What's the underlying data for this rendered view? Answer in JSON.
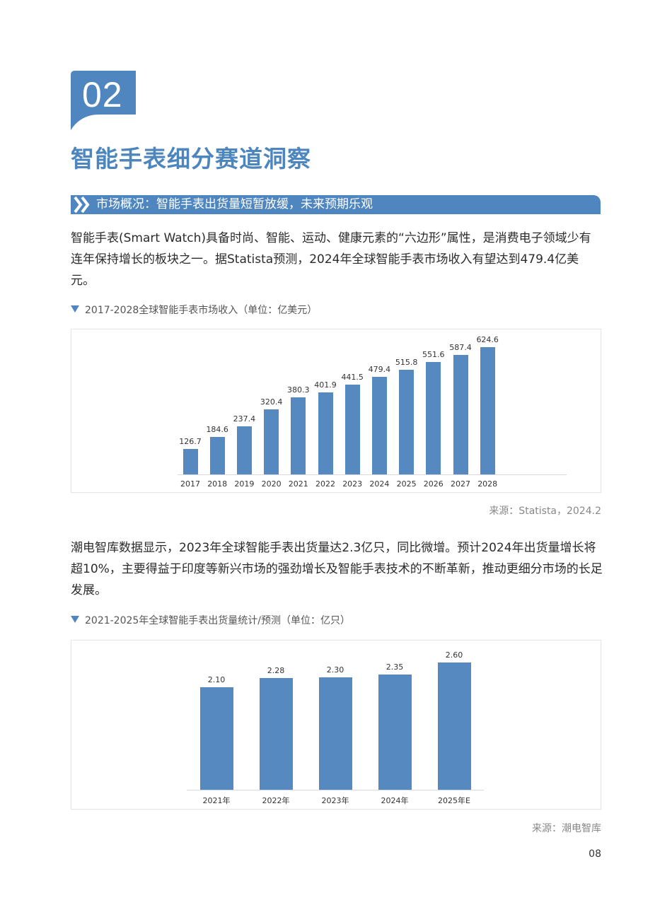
{
  "section_number": "02",
  "page_title": "智能手表细分赛道洞察",
  "section_header": "市场概况：智能手表出货量短暂放缓，未来预期乐观",
  "paragraphs": [
    "智能手表(Smart Watch)具备时尚、智能、运动、健康元素的“六边形”属性，是消费电子领域少有连年保持增长的板块之一。据Statista预测，2024年全球智能手表市场收入有望达到479.4亿美元。",
    "潮电智库数据显示，2023年全球智能手表出货量达2.3亿只，同比微增。预计2024年出货量增长将超10%，主要得益于印度等新兴市场的强劲增长及智能手表技术的不断革新，推动更细分市场的长足发展。"
  ],
  "charts": [
    {
      "caption": "2017-2028全球智能手表市场收入（单位：亿美元）",
      "source": "来源：Statista，2024.2"
    },
    {
      "caption": "2021-2025年全球智能手表出货量统计/预测（单位：亿只）",
      "source": "来源：潮电智库"
    }
  ],
  "page_number": "08",
  "colors": {
    "accent": "#4f86bf",
    "bar": "#5589bf",
    "title": "#4d86bd"
  },
  "icons": {
    "section_bar": "double-chevron-right-icon",
    "caption": "triangle-down-icon"
  },
  "chart_data": [
    {
      "type": "bar",
      "title": "2017-2028全球智能手表市场收入（单位：亿美元）",
      "xlabel": "",
      "ylabel": "亿美元",
      "categories": [
        "2017",
        "2018",
        "2019",
        "2020",
        "2021",
        "2022",
        "2023",
        "2024",
        "2025",
        "2026",
        "2027",
        "2028"
      ],
      "values": [
        126.7,
        184.6,
        237.4,
        320.4,
        380.3,
        401.9,
        441.5,
        479.4,
        515.8,
        551.6,
        587.4,
        624.6
      ],
      "value_labels": [
        "126.7",
        "184.6",
        "237.4",
        "320.4",
        "380.3",
        "401.9",
        "441.5",
        "479.4",
        "515.8",
        "551.6",
        "587.4",
        "624.6"
      ],
      "ylim": [
        0,
        650
      ],
      "grid": false,
      "legend": "none",
      "source": "来源：Statista，2024.2"
    },
    {
      "type": "bar",
      "title": "2021-2025年全球智能手表出货量统计/预测（单位：亿只）",
      "xlabel": "",
      "ylabel": "亿只",
      "categories": [
        "2021年",
        "2022年",
        "2023年",
        "2024年",
        "2025年E"
      ],
      "values": [
        2.1,
        2.28,
        2.3,
        2.35,
        2.6
      ],
      "value_labels": [
        "2.10",
        "2.28",
        "2.30",
        "2.35",
        "2.60"
      ],
      "ylim": [
        0,
        2.7
      ],
      "grid": false,
      "legend": "none",
      "source": "来源：潮电智库"
    }
  ]
}
